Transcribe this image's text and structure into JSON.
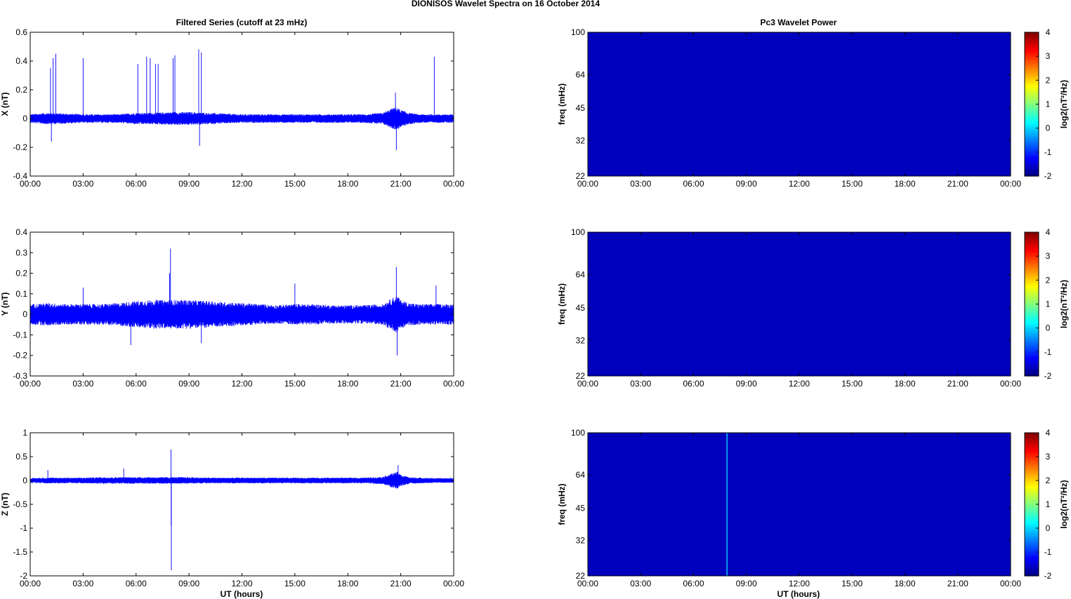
{
  "figure": {
    "title": "DIONISOS Wavelet Spectra on 16 October   2014",
    "left_column_title": "Filtered Series (cutoff at 23 mHz)",
    "right_column_title": "Pc3 Wavelet Power",
    "x_label": "UT (hours)"
  },
  "colors": {
    "trace": "#0000ff",
    "spectrum_background": "#00008f",
    "axis": "#000000"
  },
  "chart_data": [
    {
      "type": "line",
      "panel": "X",
      "ylabel": "X (nT)",
      "ylim": [
        -0.4,
        0.6
      ],
      "yticks": [
        -0.4,
        -0.2,
        0,
        0.2,
        0.4,
        0.6
      ],
      "ytick_labels": [
        "-0.4",
        "-0.2",
        "0",
        "0.2",
        "0.4",
        "0.6"
      ],
      "xlim": [
        0,
        24
      ],
      "xticks": [
        0,
        3,
        6,
        9,
        12,
        15,
        18,
        21,
        24
      ],
      "xtick_labels": [
        "00:00",
        "03:00",
        "06:00",
        "09:00",
        "12:00",
        "15:00",
        "18:00",
        "21:00",
        "00:00"
      ],
      "series": [
        {
          "envelope": {
            "hours": [
              0,
              1,
              2,
              3,
              4,
              5,
              6,
              7,
              8,
              9,
              10,
              11,
              12,
              13,
              14,
              15,
              16,
              17,
              18,
              19,
              20,
              20.5,
              20.8,
              21,
              21.5,
              22,
              23,
              24
            ],
            "amp": [
              0.03,
              0.04,
              0.035,
              0.03,
              0.03,
              0.03,
              0.04,
              0.04,
              0.045,
              0.045,
              0.04,
              0.035,
              0.03,
              0.03,
              0.03,
              0.03,
              0.03,
              0.03,
              0.03,
              0.03,
              0.04,
              0.07,
              0.08,
              0.06,
              0.04,
              0.03,
              0.03,
              0.03
            ]
          },
          "spikes": [
            {
              "hour": 1.15,
              "value": 0.35
            },
            {
              "hour": 1.3,
              "value": 0.42
            },
            {
              "hour": 1.45,
              "value": 0.45
            },
            {
              "hour": 3.0,
              "value": 0.42
            },
            {
              "hour": 6.1,
              "value": 0.38
            },
            {
              "hour": 6.6,
              "value": 0.43
            },
            {
              "hour": 6.8,
              "value": 0.42
            },
            {
              "hour": 7.1,
              "value": 0.38
            },
            {
              "hour": 7.25,
              "value": 0.38
            },
            {
              "hour": 8.1,
              "value": 0.42
            },
            {
              "hour": 8.2,
              "value": 0.44
            },
            {
              "hour": 9.55,
              "value": 0.48
            },
            {
              "hour": 9.7,
              "value": 0.46
            },
            {
              "hour": 20.7,
              "value": 0.18
            },
            {
              "hour": 20.75,
              "value": -0.22
            },
            {
              "hour": 22.9,
              "value": 0.43
            },
            {
              "hour": 9.6,
              "value": -0.19
            },
            {
              "hour": 1.2,
              "value": -0.16
            }
          ]
        }
      ]
    },
    {
      "type": "line",
      "panel": "Y",
      "ylabel": "Y (nT)",
      "ylim": [
        -0.3,
        0.4
      ],
      "yticks": [
        -0.3,
        -0.2,
        -0.1,
        0,
        0.1,
        0.2,
        0.3,
        0.4
      ],
      "ytick_labels": [
        "-0.3",
        "-0.2",
        "-0.1",
        "0",
        "0.1",
        "0.2",
        "0.3",
        "0.4"
      ],
      "xlim": [
        0,
        24
      ],
      "xticks": [
        0,
        3,
        6,
        9,
        12,
        15,
        18,
        21,
        24
      ],
      "xtick_labels": [
        "00:00",
        "03:00",
        "06:00",
        "09:00",
        "12:00",
        "15:00",
        "18:00",
        "21:00",
        "00:00"
      ],
      "series": [
        {
          "envelope": {
            "hours": [
              0,
              1,
              2,
              3,
              4,
              5,
              6,
              7,
              8,
              9,
              10,
              11,
              12,
              13,
              14,
              15,
              16,
              17,
              18,
              19,
              20,
              20.5,
              20.8,
              21,
              21.5,
              22,
              23,
              24
            ],
            "amp": [
              0.05,
              0.055,
              0.05,
              0.05,
              0.05,
              0.055,
              0.065,
              0.07,
              0.07,
              0.07,
              0.065,
              0.06,
              0.055,
              0.05,
              0.045,
              0.05,
              0.05,
              0.045,
              0.045,
              0.045,
              0.05,
              0.08,
              0.09,
              0.07,
              0.055,
              0.05,
              0.05,
              0.05
            ]
          },
          "spikes": [
            {
              "hour": 7.95,
              "value": 0.32
            },
            {
              "hour": 7.9,
              "value": 0.2
            },
            {
              "hour": 20.75,
              "value": 0.23
            },
            {
              "hour": 20.8,
              "value": -0.2
            },
            {
              "hour": 5.7,
              "value": -0.15
            },
            {
              "hour": 9.7,
              "value": -0.14
            },
            {
              "hour": 3.0,
              "value": 0.13
            },
            {
              "hour": 15.0,
              "value": 0.15
            },
            {
              "hour": 23.0,
              "value": 0.14
            }
          ]
        }
      ]
    },
    {
      "type": "line",
      "panel": "Z",
      "ylabel": "Z (nT)",
      "ylim": [
        -2,
        1
      ],
      "yticks": [
        -2,
        -1.5,
        -1,
        -0.5,
        0,
        0.5,
        1
      ],
      "ytick_labels": [
        "-2",
        "-1.5",
        "-1",
        "-0.5",
        "0",
        "0.5",
        "1"
      ],
      "xlim": [
        0,
        24
      ],
      "xticks": [
        0,
        3,
        6,
        9,
        12,
        15,
        18,
        21,
        24
      ],
      "xtick_labels": [
        "00:00",
        "03:00",
        "06:00",
        "09:00",
        "12:00",
        "15:00",
        "18:00",
        "21:00",
        "00:00"
      ],
      "series": [
        {
          "envelope": {
            "hours": [
              0,
              1,
              2,
              3,
              4,
              5,
              6,
              7,
              8,
              9,
              10,
              11,
              12,
              13,
              14,
              15,
              16,
              17,
              18,
              19,
              20,
              20.5,
              20.8,
              21,
              21.5,
              22,
              23,
              24
            ],
            "amp": [
              0.05,
              0.06,
              0.06,
              0.06,
              0.07,
              0.07,
              0.07,
              0.07,
              0.07,
              0.07,
              0.06,
              0.06,
              0.06,
              0.06,
              0.06,
              0.06,
              0.06,
              0.06,
              0.06,
              0.06,
              0.08,
              0.15,
              0.18,
              0.12,
              0.07,
              0.06,
              0.05,
              0.05
            ]
          },
          "spikes": [
            {
              "hour": 7.98,
              "value": 0.65
            },
            {
              "hour": 8.0,
              "value": -1.88
            },
            {
              "hour": 7.99,
              "value": -0.95
            },
            {
              "hour": 20.85,
              "value": 0.32
            },
            {
              "hour": 1.0,
              "value": 0.22
            },
            {
              "hour": 5.3,
              "value": 0.25
            }
          ]
        }
      ]
    },
    {
      "type": "heatmap",
      "panel": "X spectrum",
      "ylabel": "freq (mHz)",
      "yscale": "log",
      "ylim": [
        22,
        100
      ],
      "yticks": [
        22,
        32,
        45,
        64,
        100
      ],
      "ytick_labels": [
        "22",
        "32",
        "45",
        "64",
        "100"
      ],
      "xlim": [
        0,
        24
      ],
      "xticks": [
        0,
        3,
        6,
        9,
        12,
        15,
        18,
        21,
        24
      ],
      "xtick_labels": [
        "00:00",
        "03:00",
        "06:00",
        "09:00",
        "12:00",
        "15:00",
        "18:00",
        "21:00",
        "00:00"
      ],
      "colorbar": {
        "label": "log2(nT²/Hz)",
        "range": [
          -2,
          4
        ],
        "ticks": [
          "-2",
          "-1",
          "0",
          "1",
          "2",
          "3",
          "4"
        ]
      },
      "background_value": -2,
      "features": []
    },
    {
      "type": "heatmap",
      "panel": "Y spectrum",
      "ylabel": "freq (mHz)",
      "yscale": "log",
      "ylim": [
        22,
        100
      ],
      "yticks": [
        22,
        32,
        45,
        64,
        100
      ],
      "ytick_labels": [
        "22",
        "32",
        "45",
        "64",
        "100"
      ],
      "xlim": [
        0,
        24
      ],
      "xticks": [
        0,
        3,
        6,
        9,
        12,
        15,
        18,
        21,
        24
      ],
      "xtick_labels": [
        "00:00",
        "03:00",
        "06:00",
        "09:00",
        "12:00",
        "15:00",
        "18:00",
        "21:00",
        "00:00"
      ],
      "colorbar": {
        "label": "log2(nT²/Hz)",
        "range": [
          -2,
          4
        ],
        "ticks": [
          "-2",
          "-1",
          "0",
          "1",
          "2",
          "3",
          "4"
        ]
      },
      "background_value": -2,
      "features": []
    },
    {
      "type": "heatmap",
      "panel": "Z spectrum",
      "ylabel": "freq (mHz)",
      "yscale": "log",
      "ylim": [
        22,
        100
      ],
      "yticks": [
        22,
        32,
        45,
        64,
        100
      ],
      "ytick_labels": [
        "22",
        "32",
        "45",
        "64",
        "100"
      ],
      "xlim": [
        0,
        24
      ],
      "xticks": [
        0,
        3,
        6,
        9,
        12,
        15,
        18,
        21,
        24
      ],
      "xtick_labels": [
        "00:00",
        "03:00",
        "06:00",
        "09:00",
        "12:00",
        "15:00",
        "18:00",
        "21:00",
        "00:00"
      ],
      "colorbar": {
        "label": "log2(nT²/Hz)",
        "range": [
          -2,
          4
        ],
        "ticks": [
          "-2",
          "-1",
          "0",
          "1",
          "2",
          "3",
          "4"
        ]
      },
      "background_value": -2,
      "features": [
        {
          "hour": 7.9,
          "freq_range": [
            22,
            100
          ],
          "value": 0
        }
      ]
    }
  ]
}
